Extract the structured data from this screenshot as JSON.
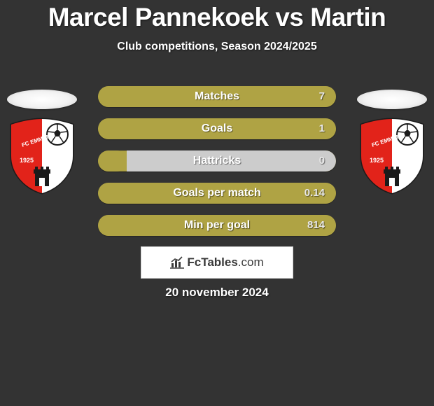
{
  "title": "Marcel Pannekoek vs Martin",
  "subtitle": "Club competitions, Season 2024/2025",
  "date": "20 november 2024",
  "logo": {
    "bold": "FcTables",
    "rest": ".com"
  },
  "crest": {
    "club_name": "FC EMMEN",
    "year": "1925",
    "shield_red": "#e2231a",
    "shield_white": "#ffffff",
    "outline": "#1b1b1b"
  },
  "ellipse_bg": "#ffffff",
  "bar_fill_color": "#afa344",
  "bar_empty_color": "#cccccc",
  "stats": [
    {
      "label": "Matches",
      "value": "7",
      "fill_pct": 100
    },
    {
      "label": "Goals",
      "value": "1",
      "fill_pct": 100
    },
    {
      "label": "Hattricks",
      "value": "0",
      "fill_pct": 12
    },
    {
      "label": "Goals per match",
      "value": "0.14",
      "fill_pct": 100
    },
    {
      "label": "Min per goal",
      "value": "814",
      "fill_pct": 100
    }
  ]
}
